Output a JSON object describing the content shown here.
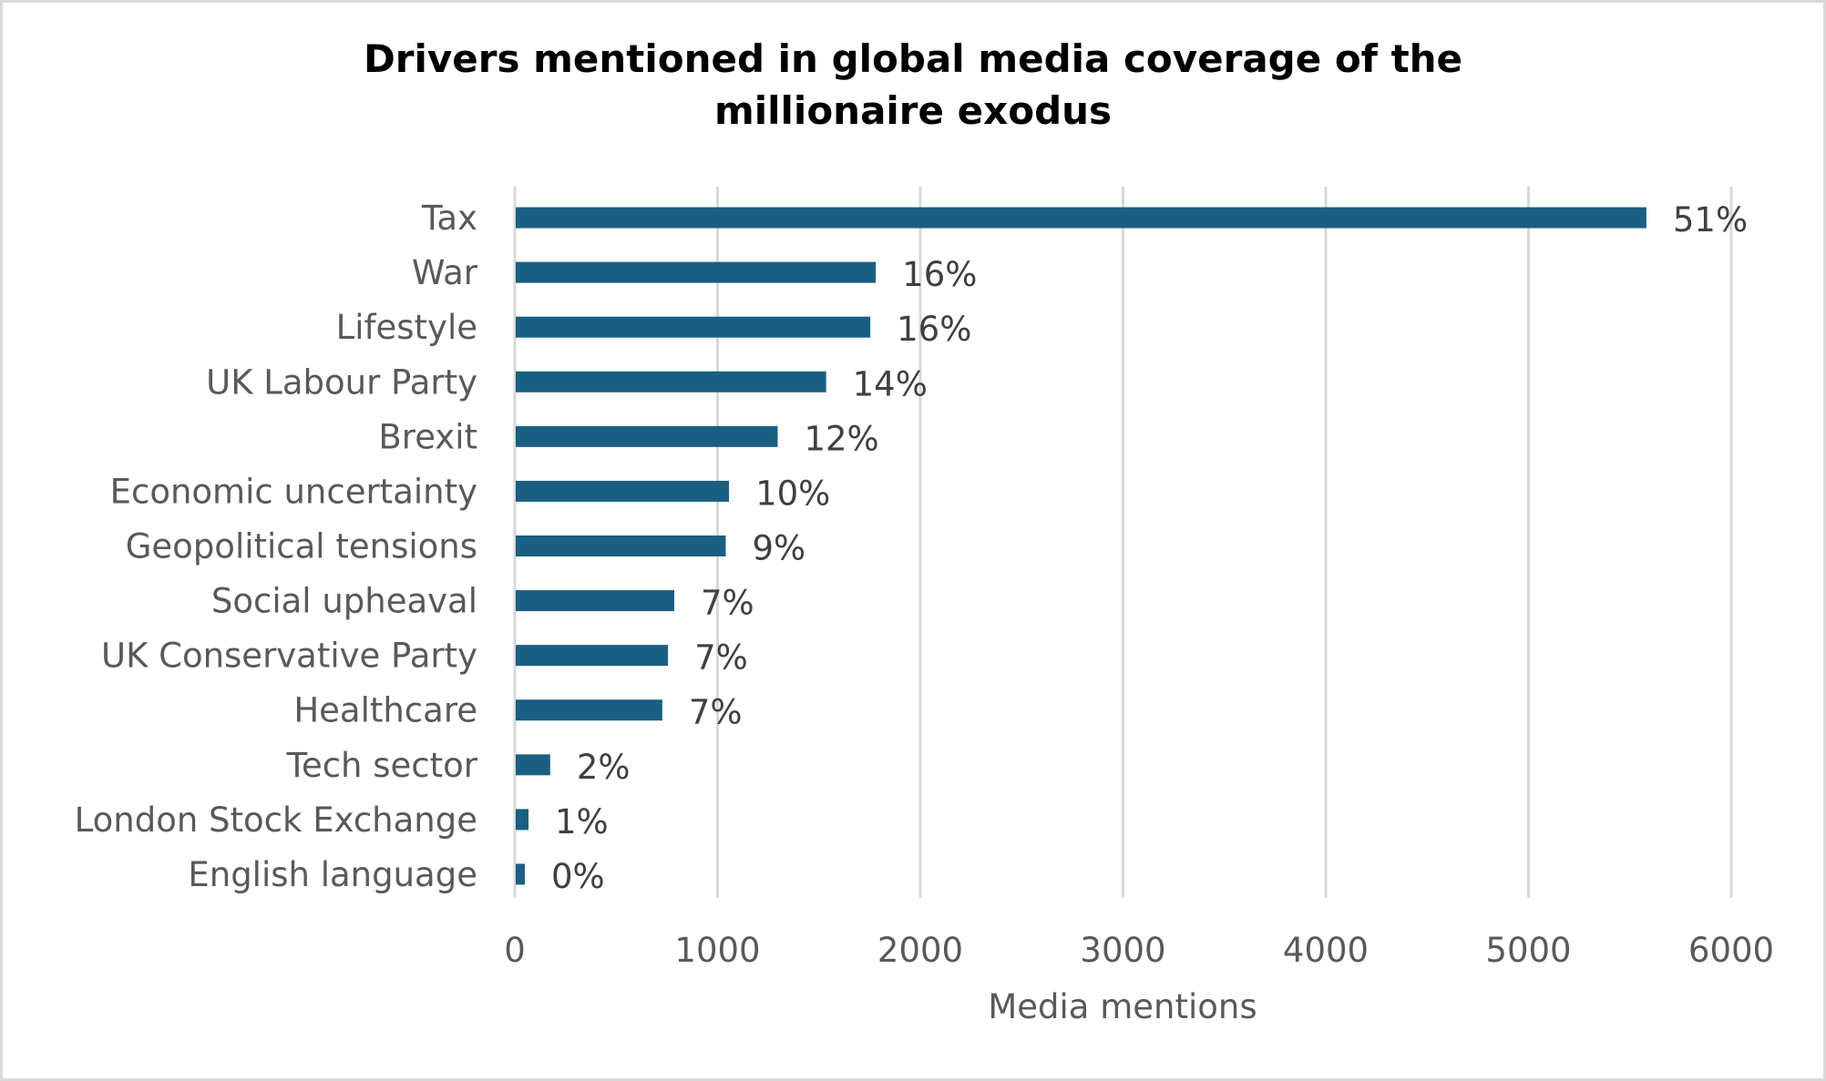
{
  "chart_data": {
    "type": "bar",
    "orientation": "horizontal",
    "title": "Drivers mentioned in global media coverage of the millionaire exodus",
    "title_lines": [
      "Drivers mentioned in global media coverage of the",
      "millionaire exodus"
    ],
    "xlabel": "Media mentions",
    "ylabel": "",
    "xlim": [
      0,
      6000
    ],
    "xticks": [
      0,
      1000,
      2000,
      3000,
      4000,
      5000,
      6000
    ],
    "grid": "vertical",
    "bar_color": "#1a5f82",
    "categories": [
      "Tax",
      "War",
      "Lifestyle",
      "UK Labour Party",
      "Brexit",
      "Economic uncertainty",
      "Geopolitical tensions",
      "Social upheaval",
      "UK Conservative Party",
      "Healthcare",
      "Tech sector",
      "London Stock Exchange",
      "English language"
    ],
    "values": [
      5577,
      1776,
      1749,
      1531,
      1292,
      1052,
      1036,
      782,
      751,
      723,
      170,
      63,
      45
    ],
    "data_labels": [
      "51%",
      "16%",
      "16%",
      "14%",
      "12%",
      "10%",
      "9%",
      "7%",
      "7%",
      "7%",
      "2%",
      "1%",
      "0%"
    ]
  }
}
